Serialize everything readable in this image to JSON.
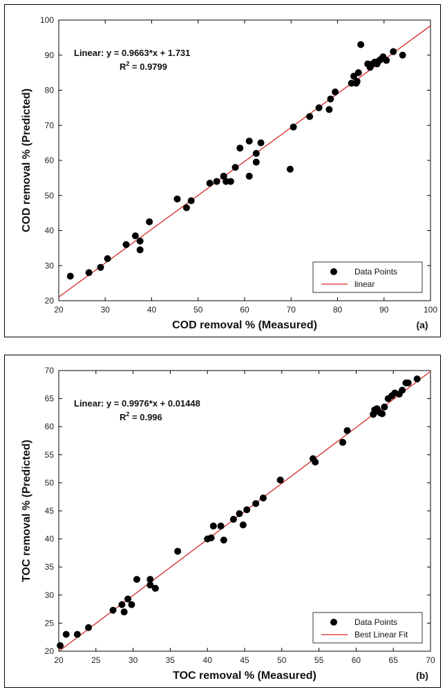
{
  "chart_data": [
    {
      "type": "scatter",
      "panel_label": "(a)",
      "xlabel": "COD removal % (Measured)",
      "ylabel": "COD removal % (Predicted)",
      "xlim": [
        20,
        100
      ],
      "ylim": [
        20,
        100
      ],
      "xticks": [
        20,
        30,
        40,
        50,
        60,
        70,
        80,
        90,
        100
      ],
      "yticks": [
        20,
        30,
        40,
        50,
        60,
        70,
        80,
        90,
        100
      ],
      "grid": false,
      "legend_position": "bottom-right",
      "annotation": {
        "line1": "Linear:  y = 0.9663*x + 1.731",
        "r2_prefix": "R",
        "r2_exp": "2",
        "r2_value": " = 0.9799"
      },
      "fit": {
        "slope": 0.9663,
        "intercept": 1.731,
        "color": "#d62728"
      },
      "series": [
        {
          "name": "Data Points",
          "color": "#000000",
          "x": [
            22.5,
            26.5,
            29,
            30.5,
            34.5,
            36.5,
            37.5,
            37.5,
            39.5,
            45.5,
            47.5,
            48.5,
            52.5,
            54,
            55.5,
            56,
            57,
            58,
            59,
            61,
            61,
            62.5,
            62.5,
            63.5,
            69.8,
            70.5,
            74,
            76,
            78.2,
            78.5,
            79.5,
            83,
            83.5,
            84,
            84.5,
            84.2,
            85,
            86.5,
            87,
            87.5,
            88,
            88.5,
            89,
            89.5,
            89.8,
            90.5,
            92,
            94
          ],
          "y": [
            27,
            28,
            29.5,
            32,
            36,
            38.5,
            37,
            34.5,
            42.5,
            49,
            46.5,
            48.5,
            53.5,
            54,
            55.5,
            54,
            54,
            58,
            63.5,
            65.5,
            55.5,
            62,
            59.5,
            65,
            57.5,
            69.5,
            72.5,
            75,
            74.5,
            77.5,
            79.5,
            82,
            84,
            82,
            85,
            82.5,
            93,
            87.5,
            86.5,
            87.5,
            88,
            87.5,
            88.5,
            89,
            89.5,
            88.5,
            91,
            90
          ]
        }
      ],
      "legend": {
        "points": "Data Points",
        "line": "linear"
      }
    },
    {
      "type": "scatter",
      "panel_label": "(b)",
      "xlabel": "TOC removal % (Measured)",
      "ylabel": "TOC removal % (Predicted)",
      "xlim": [
        20,
        70
      ],
      "ylim": [
        20,
        70
      ],
      "xticks": [
        20,
        25,
        30,
        35,
        40,
        45,
        50,
        55,
        60,
        65,
        70
      ],
      "yticks": [
        20,
        25,
        30,
        35,
        40,
        45,
        50,
        55,
        60,
        65,
        70
      ],
      "grid": false,
      "legend_position": "bottom-right",
      "annotation": {
        "line1": "Linear:  y = 0.9976*x + 0.01448",
        "r2_prefix": "R",
        "r2_exp": "2",
        "r2_value": " = 0.996"
      },
      "fit": {
        "slope": 0.9976,
        "intercept": 0.01448,
        "color": "#d62728"
      },
      "series": [
        {
          "name": "Data Points",
          "color": "#000000",
          "x": [
            20.2,
            21,
            22.5,
            24,
            27.3,
            28.5,
            28.8,
            29.3,
            29.8,
            30.5,
            32.3,
            32.3,
            33,
            36,
            40,
            40.5,
            40.8,
            41.8,
            42.2,
            43.5,
            44.3,
            44.8,
            45.3,
            46.5,
            47.5,
            49.8,
            54.2,
            54.5,
            58.2,
            58.8,
            62.3,
            62.5,
            62.8,
            63.2,
            63.5,
            63.8,
            64.3,
            64.8,
            65.2,
            65.8,
            66.2,
            66.7,
            67,
            68.2
          ],
          "y": [
            21,
            23,
            23,
            24.2,
            27.3,
            28.3,
            27,
            29.3,
            28.3,
            32.8,
            31.8,
            32.8,
            31.2,
            37.8,
            40,
            40.2,
            42.3,
            42.3,
            39.8,
            43.5,
            44.5,
            42.5,
            45.2,
            46.3,
            47.3,
            50.5,
            54.3,
            53.7,
            57.2,
            59.3,
            62.2,
            63,
            63.2,
            62.5,
            62.3,
            63.5,
            65,
            65.5,
            66,
            65.8,
            66.5,
            67.8,
            67.8,
            68.5
          ]
        }
      ],
      "legend": {
        "points": "Data Points",
        "line": "Best Linear Fit"
      }
    }
  ]
}
